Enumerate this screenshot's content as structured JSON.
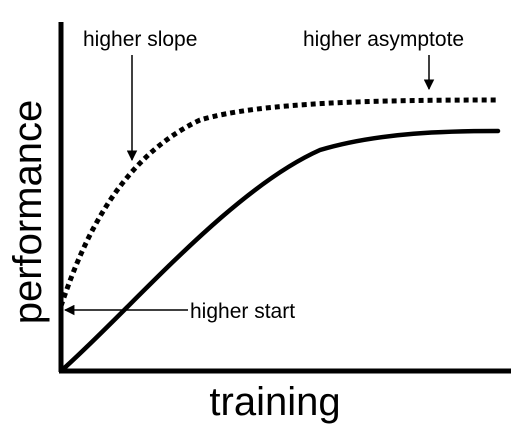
{
  "axes": {
    "x_label": "training",
    "y_label": "performance",
    "color": "#000000"
  },
  "curves": {
    "baseline": {
      "style": "solid"
    },
    "improved": {
      "style": "dotted"
    }
  },
  "annotations": {
    "slope": "higher slope",
    "asymptote": "higher asymptote",
    "start": "higher start"
  }
}
